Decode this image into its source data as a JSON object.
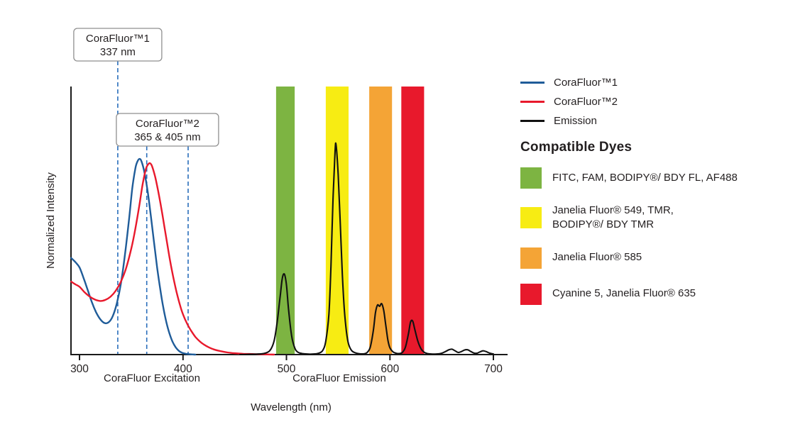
{
  "colors": {
    "corafluor1": "#1F5C99",
    "corafluor2": "#E8192C",
    "emission": "#111111",
    "dashed_line": "#2A6EBB",
    "axis": "#1A1A1A",
    "callout_border": "#8F8F8F",
    "callout_fill": "#FFFFFF"
  },
  "chart_data": {
    "type": "line",
    "title": "",
    "xlabel": "Wavelength (nm)",
    "ylabel": "Normalized Intensity",
    "xlim": [
      300,
      700
    ],
    "ylim": [
      0,
      1
    ],
    "x_ticks": [
      300,
      400,
      500,
      600,
      700
    ],
    "grid": false,
    "legend_position": "right",
    "axis_section_labels": [
      {
        "text": "CoraFluor Excitation"
      },
      {
        "text": "CoraFluor Emission"
      }
    ],
    "callouts": [
      {
        "lines": [
          "CoraFluor™1",
          "337 nm"
        ],
        "marker_nm": [
          337
        ]
      },
      {
        "lines": [
          "CoraFluor™2",
          "365 & 405 nm"
        ],
        "marker_nm": [
          365,
          405
        ]
      }
    ],
    "bands": [
      {
        "name": "green",
        "color": "#7DB442",
        "range_nm": [
          490,
          508
        ]
      },
      {
        "name": "yellow",
        "color": "#F7EC13",
        "range_nm": [
          538,
          560
        ]
      },
      {
        "name": "orange",
        "color": "#F4A436",
        "range_nm": [
          580,
          602
        ]
      },
      {
        "name": "red",
        "color": "#E8192C",
        "range_nm": [
          611,
          633
        ]
      }
    ],
    "series": [
      {
        "name": "CoraFluor™1",
        "color": "#1F5C99",
        "points": [
          [
            292,
            0.36
          ],
          [
            296,
            0.345
          ],
          [
            300,
            0.325
          ],
          [
            304,
            0.285
          ],
          [
            308,
            0.24
          ],
          [
            312,
            0.195
          ],
          [
            316,
            0.158
          ],
          [
            320,
            0.132
          ],
          [
            324,
            0.118
          ],
          [
            328,
            0.12
          ],
          [
            332,
            0.142
          ],
          [
            336,
            0.19
          ],
          [
            340,
            0.265
          ],
          [
            344,
            0.375
          ],
          [
            348,
            0.51
          ],
          [
            351,
            0.62
          ],
          [
            354,
            0.695
          ],
          [
            356,
            0.72
          ],
          [
            358,
            0.73
          ],
          [
            360,
            0.72
          ],
          [
            363,
            0.675
          ],
          [
            366,
            0.605
          ],
          [
            369,
            0.515
          ],
          [
            372,
            0.42
          ],
          [
            375,
            0.325
          ],
          [
            378,
            0.245
          ],
          [
            381,
            0.175
          ],
          [
            384,
            0.12
          ],
          [
            387,
            0.078
          ],
          [
            390,
            0.047
          ],
          [
            393,
            0.027
          ],
          [
            396,
            0.014
          ],
          [
            399,
            0.007
          ],
          [
            403,
            0.003
          ],
          [
            407,
            0.001
          ],
          [
            412,
            0
          ]
        ]
      },
      {
        "name": "CoraFluor™2",
        "color": "#E8192C",
        "points": [
          [
            292,
            0.272
          ],
          [
            296,
            0.262
          ],
          [
            300,
            0.253
          ],
          [
            305,
            0.232
          ],
          [
            310,
            0.216
          ],
          [
            315,
            0.205
          ],
          [
            320,
            0.2
          ],
          [
            325,
            0.204
          ],
          [
            330,
            0.216
          ],
          [
            335,
            0.238
          ],
          [
            340,
            0.272
          ],
          [
            345,
            0.322
          ],
          [
            350,
            0.395
          ],
          [
            354,
            0.47
          ],
          [
            358,
            0.56
          ],
          [
            361,
            0.635
          ],
          [
            364,
            0.69
          ],
          [
            366,
            0.708
          ],
          [
            368,
            0.714
          ],
          [
            370,
            0.704
          ],
          [
            373,
            0.665
          ],
          [
            376,
            0.61
          ],
          [
            379,
            0.548
          ],
          [
            382,
            0.478
          ],
          [
            385,
            0.408
          ],
          [
            388,
            0.34
          ],
          [
            391,
            0.282
          ],
          [
            394,
            0.23
          ],
          [
            397,
            0.186
          ],
          [
            400,
            0.15
          ],
          [
            404,
            0.115
          ],
          [
            408,
            0.088
          ],
          [
            412,
            0.066
          ],
          [
            416,
            0.05
          ],
          [
            420,
            0.038
          ],
          [
            425,
            0.027
          ],
          [
            430,
            0.019
          ],
          [
            436,
            0.013
          ],
          [
            443,
            0.008
          ],
          [
            450,
            0.005
          ],
          [
            458,
            0.003
          ],
          [
            467,
            0.002
          ],
          [
            477,
            0.001
          ],
          [
            488,
            0
          ]
        ]
      },
      {
        "name": "Emission",
        "color": "#111111",
        "points": [
          [
            455,
            0
          ],
          [
            465,
            0.001
          ],
          [
            473,
            0.002
          ],
          [
            479,
            0.005
          ],
          [
            484,
            0.015
          ],
          [
            488,
            0.05
          ],
          [
            491,
            0.12
          ],
          [
            494,
            0.22
          ],
          [
            496,
            0.285
          ],
          [
            498,
            0.3
          ],
          [
            500,
            0.26
          ],
          [
            502,
            0.17
          ],
          [
            505,
            0.07
          ],
          [
            508,
            0.025
          ],
          [
            511,
            0.009
          ],
          [
            515,
            0.004
          ],
          [
            520,
            0.002
          ],
          [
            526,
            0.002
          ],
          [
            531,
            0.005
          ],
          [
            535,
            0.015
          ],
          [
            538,
            0.05
          ],
          [
            541,
            0.15
          ],
          [
            543,
            0.33
          ],
          [
            545,
            0.58
          ],
          [
            547,
            0.76
          ],
          [
            548,
            0.78
          ],
          [
            550,
            0.67
          ],
          [
            552,
            0.49
          ],
          [
            554,
            0.3
          ],
          [
            556,
            0.165
          ],
          [
            558,
            0.085
          ],
          [
            560,
            0.04
          ],
          [
            563,
            0.015
          ],
          [
            567,
            0.006
          ],
          [
            571,
            0.003
          ],
          [
            575,
            0.003
          ],
          [
            578,
            0.008
          ],
          [
            581,
            0.028
          ],
          [
            584,
            0.09
          ],
          [
            586,
            0.155
          ],
          [
            588,
            0.185
          ],
          [
            590,
            0.18
          ],
          [
            592,
            0.19
          ],
          [
            594,
            0.165
          ],
          [
            596,
            0.11
          ],
          [
            598,
            0.055
          ],
          [
            600,
            0.025
          ],
          [
            603,
            0.01
          ],
          [
            606,
            0.005
          ],
          [
            609,
            0.004
          ],
          [
            612,
            0.008
          ],
          [
            615,
            0.028
          ],
          [
            618,
            0.08
          ],
          [
            620,
            0.122
          ],
          [
            622,
            0.125
          ],
          [
            624,
            0.095
          ],
          [
            627,
            0.05
          ],
          [
            630,
            0.022
          ],
          [
            633,
            0.009
          ],
          [
            636,
            0.004
          ],
          [
            640,
            0.002
          ],
          [
            645,
            0.002
          ],
          [
            650,
            0.005
          ],
          [
            654,
            0.012
          ],
          [
            657,
            0.018
          ],
          [
            660,
            0.02
          ],
          [
            663,
            0.014
          ],
          [
            666,
            0.008
          ],
          [
            669,
            0.011
          ],
          [
            672,
            0.017
          ],
          [
            675,
            0.018
          ],
          [
            678,
            0.012
          ],
          [
            681,
            0.006
          ],
          [
            684,
            0.005
          ],
          [
            687,
            0.01
          ],
          [
            690,
            0.014
          ],
          [
            693,
            0.011
          ],
          [
            696,
            0.006
          ],
          [
            700,
            0.002
          ]
        ]
      }
    ]
  },
  "legend": {
    "items": [
      {
        "label": "CoraFluor™1",
        "color": "#1F5C99"
      },
      {
        "label": "CoraFluor™2",
        "color": "#E8192C"
      },
      {
        "label": "Emission",
        "color": "#111111"
      }
    ]
  },
  "compatible_dyes": {
    "title": "Compatible Dyes",
    "items": [
      {
        "color": "#7DB442",
        "label": "FITC, FAM, BODIPY®/ BDY FL, AF488"
      },
      {
        "color": "#F7EC13",
        "label": "Janelia Fluor® 549, TMR,\nBODIPY®/ BDY TMR"
      },
      {
        "color": "#F4A436",
        "label": "Janelia Fluor® 585"
      },
      {
        "color": "#E8192C",
        "label": "Cyanine 5, Janelia Fluor® 635"
      }
    ]
  }
}
